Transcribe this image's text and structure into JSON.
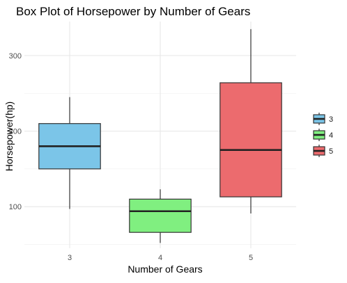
{
  "chart_data": {
    "type": "box",
    "title": "Box Plot of Horsepower by Number of Gears",
    "xlabel": "Number of Gears",
    "ylabel": "Horsepower(hp)",
    "categories": [
      "3",
      "4",
      "5"
    ],
    "ylim": [
      45,
      345
    ],
    "yticks": [
      100,
      200,
      300
    ],
    "grid": true,
    "legend_position": "right",
    "legend_entries": [
      "3",
      "4",
      "5"
    ],
    "series": [
      {
        "category": "3",
        "min": 97,
        "q1": 150,
        "median": 180,
        "q3": 210,
        "max": 245,
        "color": "#7BC5E8"
      },
      {
        "category": "4",
        "min": 52,
        "q1": 66,
        "median": 94,
        "q3": 110,
        "max": 123,
        "color": "#80EF80"
      },
      {
        "category": "5",
        "min": 91,
        "q1": 113,
        "median": 175,
        "q3": 264,
        "max": 335,
        "color": "#EC6B6E"
      }
    ]
  }
}
